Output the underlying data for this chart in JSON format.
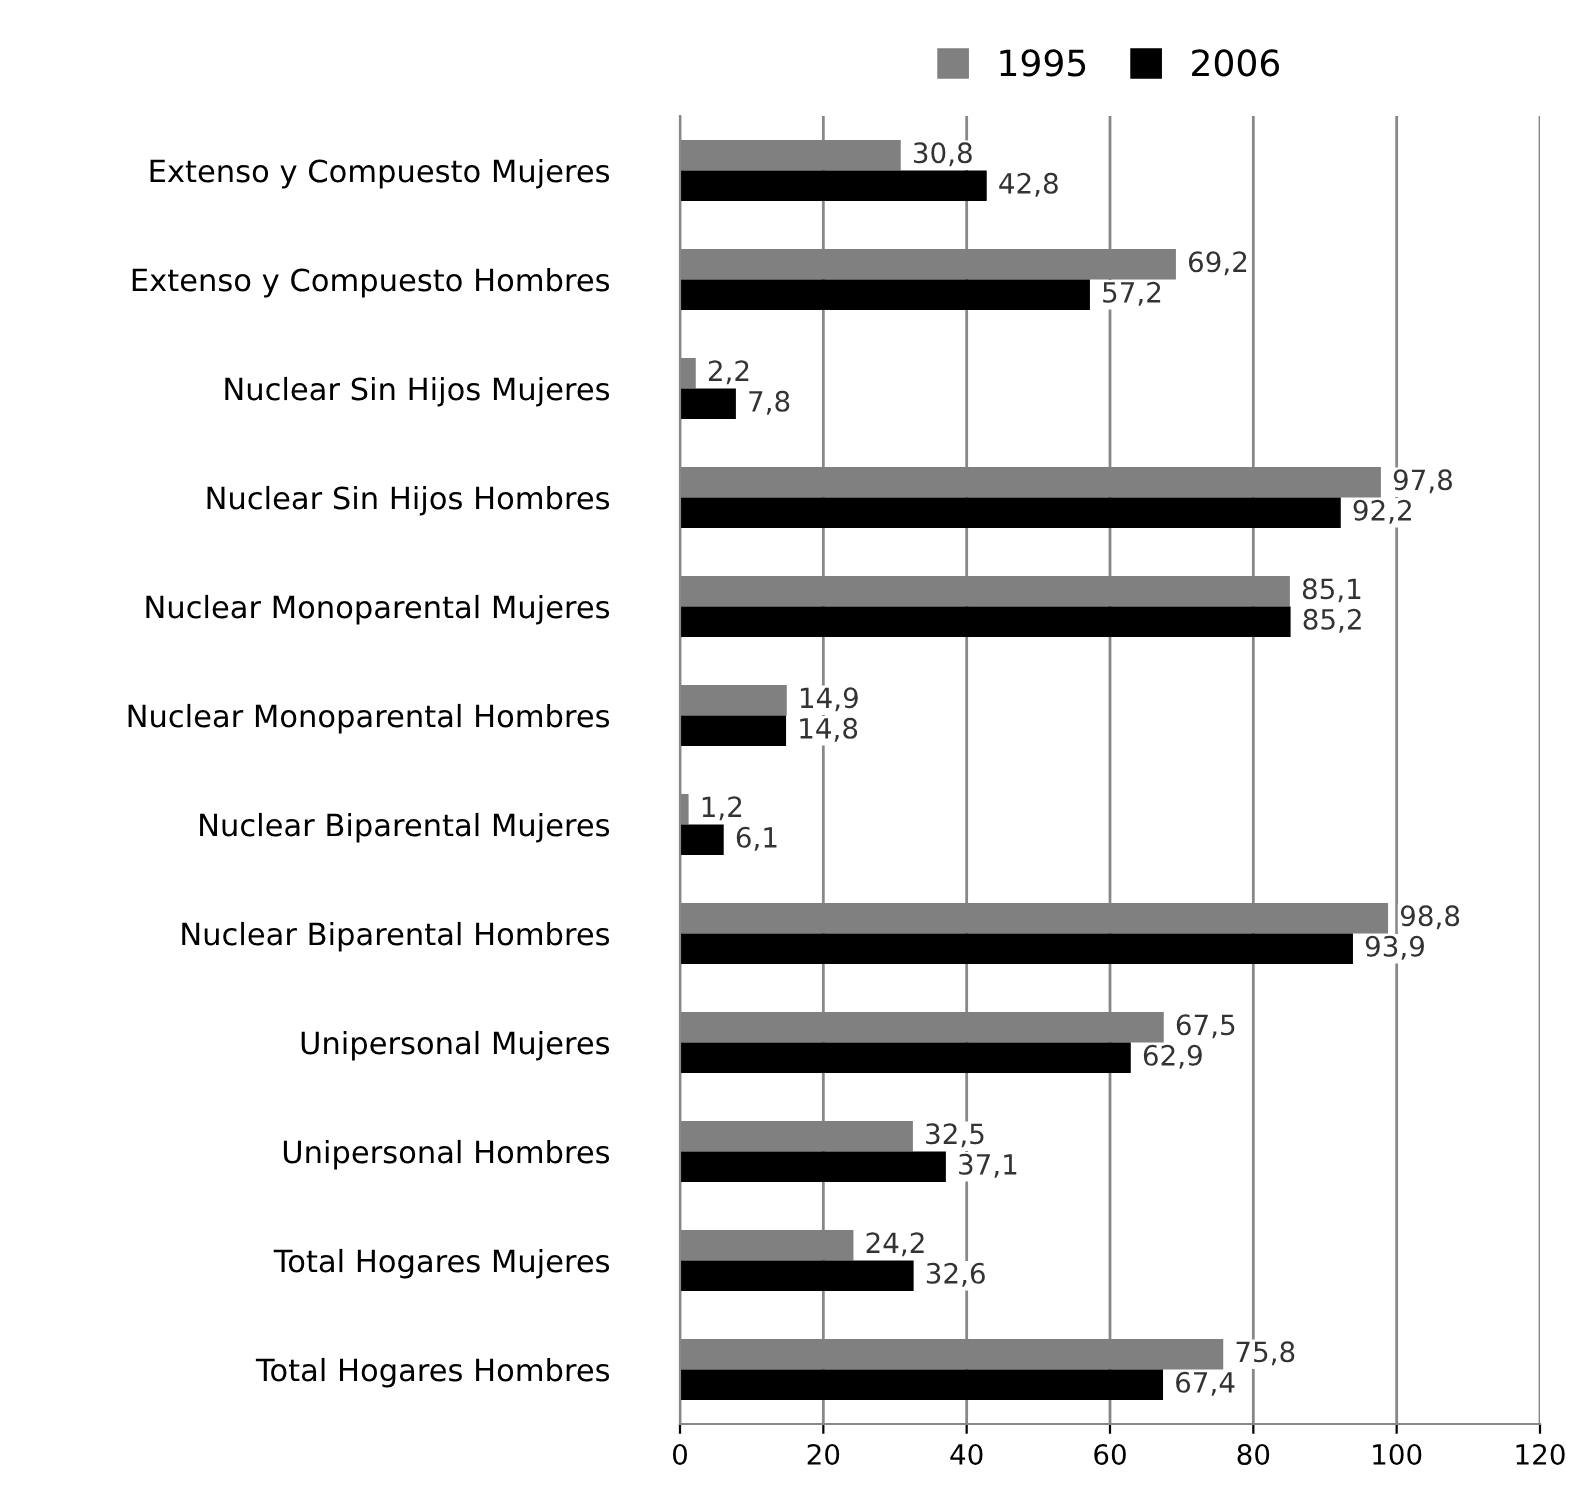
{
  "chart_data": {
    "type": "bar",
    "orientation": "horizontal",
    "categories": [
      "Extenso y Compuesto Mujeres",
      "Extenso y Compuesto Hombres",
      "Nuclear Sin Hijos Mujeres",
      "Nuclear Sin Hijos Hombres",
      "Nuclear Monoparental Mujeres",
      "Nuclear Monoparental Hombres",
      "Nuclear Biparental Mujeres",
      "Nuclear Biparental Hombres",
      "Unipersonal Mujeres",
      "Unipersonal Hombres",
      "Total Hogares Mujeres",
      "Total Hogares Hombres"
    ],
    "series": [
      {
        "name": "1995",
        "color": "#808080",
        "values": [
          30.8,
          69.2,
          2.2,
          97.8,
          85.1,
          14.9,
          1.2,
          98.8,
          67.5,
          32.5,
          24.2,
          75.8
        ],
        "value_labels": [
          "30,8",
          "69,2",
          "2,2",
          "97,8",
          "85,1",
          "14,9",
          "1,2",
          "98,8",
          "67,5",
          "32,5",
          "24,2",
          "75,8"
        ]
      },
      {
        "name": "2006",
        "color": "#000000",
        "values": [
          42.8,
          57.2,
          7.8,
          92.2,
          85.2,
          14.8,
          6.1,
          93.9,
          62.9,
          37.1,
          32.6,
          67.4
        ],
        "value_labels": [
          "42,8",
          "57,2",
          "7,8",
          "92,2",
          "85,2",
          "14,8",
          "6,1",
          "93,9",
          "62,9",
          "37,1",
          "32,6",
          "67,4"
        ]
      }
    ],
    "xlim": [
      0,
      120
    ],
    "xticks": [
      0,
      20,
      40,
      60,
      80,
      100,
      120
    ],
    "grid": "x",
    "legend": "top"
  }
}
